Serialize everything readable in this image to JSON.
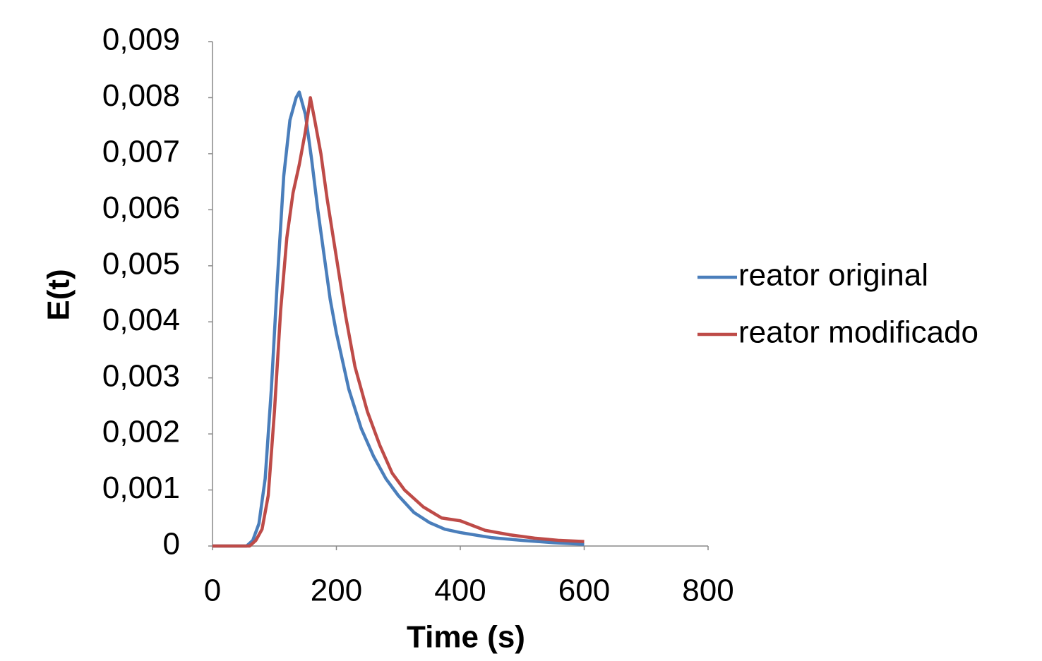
{
  "chart_data": {
    "type": "line",
    "x_label": "Time (s)",
    "y_label": "E(t)",
    "xlim": [
      0,
      800
    ],
    "xticks": [
      0,
      200,
      400,
      600,
      800
    ],
    "ylim": [
      0,
      0.009
    ],
    "yticks": [
      0,
      {
        "value": 0.001,
        "label": "0,001"
      },
      {
        "value": 0.002,
        "label": "0,002"
      },
      {
        "value": 0.003,
        "label": "0,003"
      },
      {
        "value": 0.004,
        "label": "0,004"
      },
      {
        "value": 0.005,
        "label": "0,005"
      },
      {
        "value": 0.006,
        "label": "0,006"
      },
      {
        "value": 0.007,
        "label": "0,007"
      },
      {
        "value": 0.008,
        "label": "0,008"
      },
      {
        "value": 0.009,
        "label": "0,009"
      }
    ],
    "grid": false,
    "legend": "right",
    "series": [
      {
        "name": "reator original",
        "color": "#4a7ebb",
        "x": [
          0,
          20,
          40,
          55,
          65,
          75,
          85,
          95,
          105,
          115,
          125,
          135,
          140,
          150,
          160,
          170,
          180,
          190,
          200,
          220,
          240,
          260,
          280,
          300,
          325,
          350,
          375,
          400,
          450,
          500,
          550,
          600
        ],
        "values": [
          0,
          0,
          0,
          0,
          0.0001,
          0.0004,
          0.0012,
          0.0028,
          0.0048,
          0.0066,
          0.0076,
          0.008,
          0.0081,
          0.0077,
          0.0069,
          0.006,
          0.0052,
          0.0044,
          0.0038,
          0.0028,
          0.0021,
          0.0016,
          0.0012,
          0.0009,
          0.0006,
          0.00042,
          0.0003,
          0.00024,
          0.00015,
          0.0001,
          6e-05,
          3e-05
        ]
      },
      {
        "name": "reator modificado",
        "color": "#be4b48",
        "x": [
          0,
          60,
          70,
          80,
          90,
          100,
          110,
          120,
          130,
          140,
          150,
          158,
          165,
          175,
          185,
          195,
          205,
          215,
          230,
          250,
          270,
          290,
          310,
          340,
          370,
          400,
          440,
          480,
          520,
          560,
          600
        ],
        "values": [
          0,
          0,
          0.0001,
          0.0003,
          0.0009,
          0.0024,
          0.0042,
          0.0055,
          0.0063,
          0.0068,
          0.0074,
          0.008,
          0.0076,
          0.007,
          0.0062,
          0.0055,
          0.0048,
          0.0041,
          0.0032,
          0.0024,
          0.0018,
          0.0013,
          0.001,
          0.0007,
          0.0005,
          0.00045,
          0.00028,
          0.0002,
          0.00014,
          0.0001,
          8e-05
        ]
      }
    ]
  }
}
